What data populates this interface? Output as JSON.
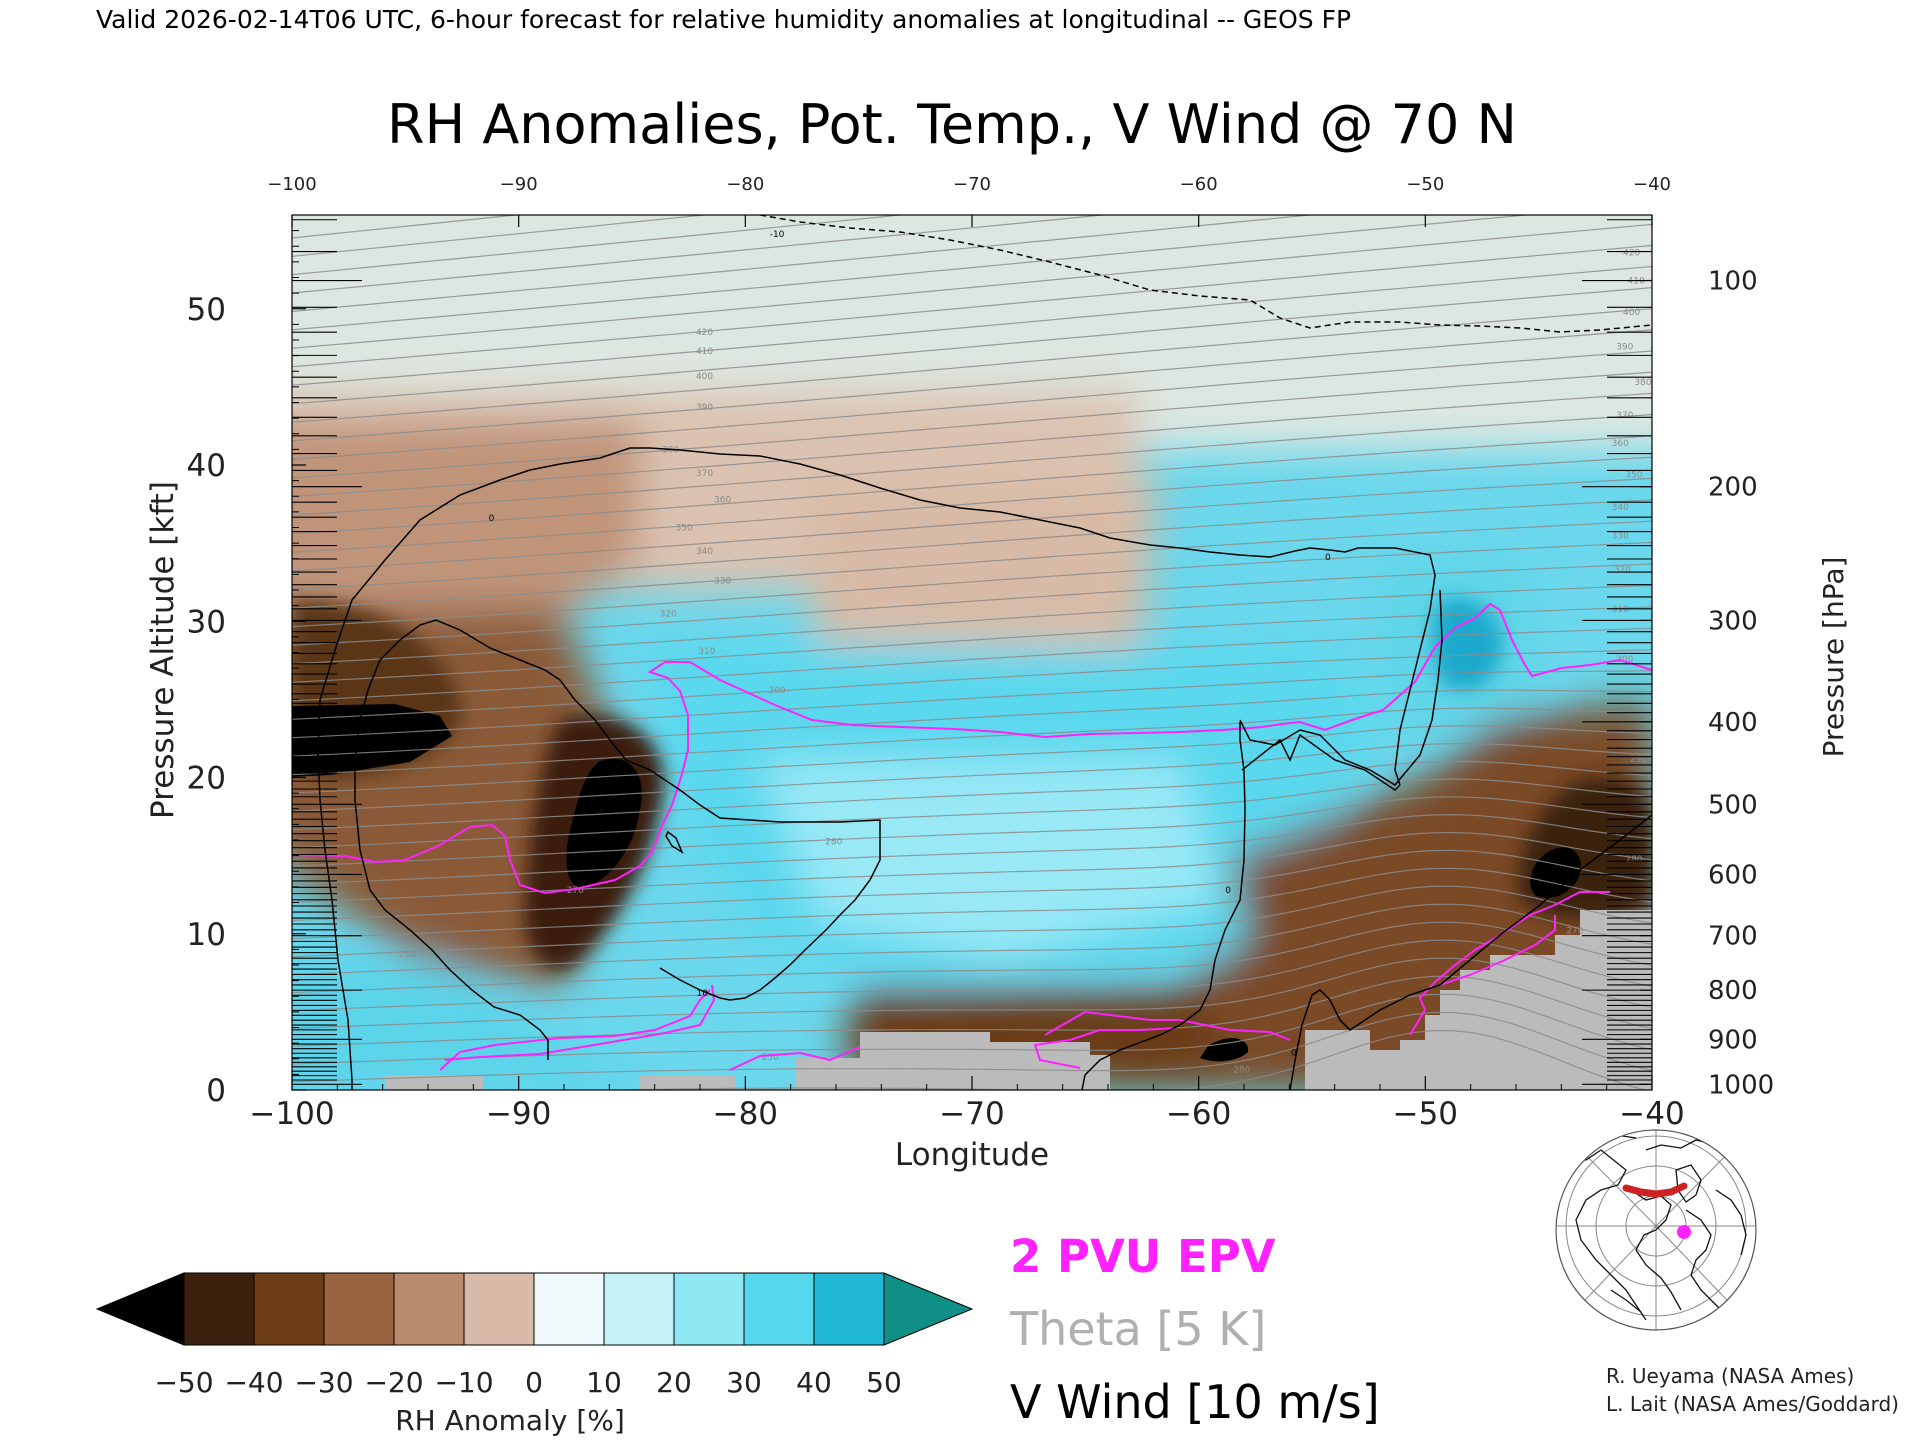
{
  "header": {
    "valid_line": "Valid 2026-02-14T06 UTC, 6-hour forecast for relative humidity anomalies at longitudinal -- GEOS FP"
  },
  "chart_data": {
    "type": "heatmap",
    "title": "RH Anomalies, Pot. Temp., V Wind @ 70 N",
    "xlabel": "Longitude",
    "ylabel_left": "Pressure Altitude [kft]",
    "ylabel_right": "Pressure [hPa]",
    "xlim": [
      -100,
      -40
    ],
    "ylim": [
      0,
      56
    ],
    "x_ticks": [
      -100,
      -90,
      -80,
      -70,
      -60,
      -50,
      -40
    ],
    "x_tick_labels": [
      "−100",
      "−90",
      "−80",
      "−70",
      "−60",
      "−50",
      "−40"
    ],
    "top_x_tick_labels": [
      "−100",
      "−90",
      "−80",
      "−70",
      "−60",
      "−50",
      "−40"
    ],
    "y_ticks": [
      0,
      10,
      20,
      30,
      40,
      50
    ],
    "y_tick_labels": [
      "0",
      "10",
      "20",
      "30",
      "40",
      "50"
    ],
    "pressure_ticks": [
      {
        "hpa": 100,
        "label": "100"
      },
      {
        "hpa": 200,
        "label": "200"
      },
      {
        "hpa": 300,
        "label": "300"
      },
      {
        "hpa": 400,
        "label": "400"
      },
      {
        "hpa": 500,
        "label": "500"
      },
      {
        "hpa": 600,
        "label": "600"
      },
      {
        "hpa": 700,
        "label": "700"
      },
      {
        "hpa": 800,
        "label": "800"
      },
      {
        "hpa": 900,
        "label": "900"
      },
      {
        "hpa": 1000,
        "label": "1000"
      }
    ],
    "colorbar": {
      "label": "RH Anomaly [%]",
      "levels": [
        -50,
        -40,
        -30,
        -20,
        -10,
        0,
        10,
        20,
        30,
        40,
        50
      ],
      "level_labels": [
        "−50",
        "−40",
        "−30",
        "−20",
        "−10",
        "0",
        "10",
        "20",
        "30",
        "40",
        "50"
      ],
      "under_color": "#000000",
      "over_color": "#0f8f86",
      "colors": [
        "#3a200d",
        "#6e3e16",
        "#9a6440",
        "#b98a6c",
        "#d9b9a8",
        "#f0fafc",
        "#c4f2f8",
        "#8fe8f4",
        "#55d8ec",
        "#20b8d6"
      ]
    },
    "theta_labels": [
      {
        "value": "420",
        "x": -81.8,
        "y": 48.5
      },
      {
        "value": "410",
        "x": -81.8,
        "y": 47.3
      },
      {
        "value": "400",
        "x": -81.8,
        "y": 45.7
      },
      {
        "value": "390",
        "x": -81.8,
        "y": 43.7
      },
      {
        "value": "380",
        "x": -83.3,
        "y": 41.0
      },
      {
        "value": "370",
        "x": -81.8,
        "y": 39.5
      },
      {
        "value": "360",
        "x": -81.0,
        "y": 37.8
      },
      {
        "value": "350",
        "x": -82.7,
        "y": 36.0
      },
      {
        "value": "340",
        "x": -81.8,
        "y": 34.5
      },
      {
        "value": "330",
        "x": -81.0,
        "y": 32.6
      },
      {
        "value": "320",
        "x": -83.4,
        "y": 30.5
      },
      {
        "value": "310",
        "x": -81.7,
        "y": 28.1
      },
      {
        "value": "300",
        "x": -78.6,
        "y": 25.6
      },
      {
        "value": "280",
        "x": -76.1,
        "y": 15.9
      },
      {
        "value": "270",
        "x": -87.5,
        "y": 12.8
      },
      {
        "value": "260",
        "x": -94.9,
        "y": 8.7
      },
      {
        "value": "250",
        "x": -78.9,
        "y": 2.1
      },
      {
        "value": "280",
        "x": -58.1,
        "y": 1.3
      },
      {
        "value": "420",
        "x": -40.9,
        "y": 53.6
      },
      {
        "value": "410",
        "x": -40.7,
        "y": 51.8
      },
      {
        "value": "400",
        "x": -40.9,
        "y": 49.8
      },
      {
        "value": "390",
        "x": -41.2,
        "y": 47.6
      },
      {
        "value": "380",
        "x": -40.4,
        "y": 45.3
      },
      {
        "value": "370",
        "x": -41.2,
        "y": 43.2
      },
      {
        "value": "360",
        "x": -41.4,
        "y": 41.4
      },
      {
        "value": "350",
        "x": -40.8,
        "y": 39.4
      },
      {
        "value": "340",
        "x": -41.4,
        "y": 37.3
      },
      {
        "value": "330",
        "x": -41.4,
        "y": 35.5
      },
      {
        "value": "320",
        "x": -41.3,
        "y": 33.3
      },
      {
        "value": "310",
        "x": -41.4,
        "y": 30.8
      },
      {
        "value": "300",
        "x": -41.2,
        "y": 27.6
      },
      {
        "value": "290",
        "x": -40.6,
        "y": 21.2
      },
      {
        "value": "280",
        "x": -40.8,
        "y": 14.8
      },
      {
        "value": "270",
        "x": -43.4,
        "y": 10.2
      }
    ],
    "vwind_labels": [
      {
        "value": "0",
        "x": -91.2,
        "y": 36.6
      },
      {
        "value": "0",
        "x": -54.3,
        "y": 34.1
      },
      {
        "value": "0",
        "x": -58.7,
        "y": 12.8
      },
      {
        "value": "0",
        "x": -55.8,
        "y": 2.4
      },
      {
        "value": "-10",
        "x": -78.6,
        "y": 54.8
      },
      {
        "value": "10",
        "x": -81.9,
        "y": 6.2
      }
    ],
    "legend": {
      "epv": {
        "label": "2 PVU EPV",
        "color": "#ff22ff"
      },
      "theta": {
        "label": "Theta [5 K]",
        "color": "#b0b0b0"
      },
      "vwind": {
        "label": "V Wind [10 m/s]",
        "color": "#000000"
      }
    },
    "grid": false
  },
  "inset_map": {
    "name": "polar locator map",
    "track_color": "#cc2222",
    "marker_color": "#ff22ff"
  },
  "credits": {
    "line1": "R. Ueyama (NASA Ames)",
    "line2": "L. Lait (NASA Ames/Goddard)"
  }
}
